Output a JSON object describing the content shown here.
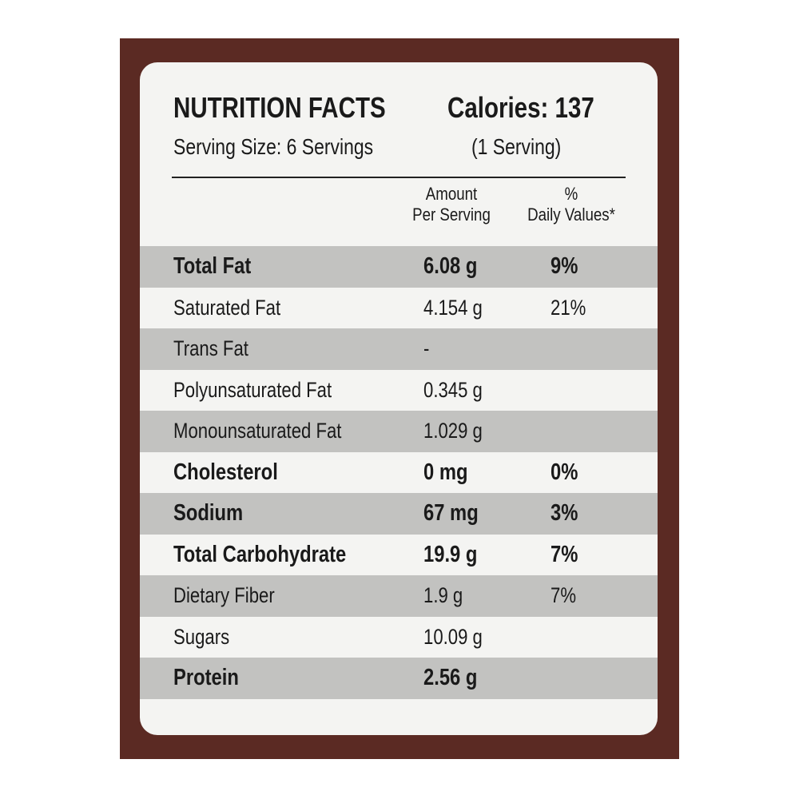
{
  "header": {
    "title": "NUTRITION FACTS",
    "serving_size": "Serving Size: 6 Servings",
    "calories": "Calories: 137",
    "calories_basis": "(1 Serving)"
  },
  "columns": {
    "amount": [
      "Amount",
      "Per Serving"
    ],
    "daily_value": [
      "%",
      "Daily Values*"
    ]
  },
  "table": {
    "rows": [
      {
        "name": "Total Fat",
        "amount": "6.08 g",
        "daily_value": "9%",
        "bold": true
      },
      {
        "name": "Saturated Fat",
        "amount": "4.154 g",
        "daily_value": "21%",
        "bold": false
      },
      {
        "name": "Trans Fat",
        "amount": "-",
        "daily_value": null,
        "bold": false
      },
      {
        "name": "Polyunsaturated Fat",
        "amount": "0.345 g",
        "daily_value": null,
        "bold": false
      },
      {
        "name": "Monounsaturated Fat",
        "amount": "1.029 g",
        "daily_value": null,
        "bold": false
      },
      {
        "name": "Cholesterol",
        "amount": "0 mg",
        "daily_value": "0%",
        "bold": true
      },
      {
        "name": "Sodium",
        "amount": "67 mg",
        "daily_value": "3%",
        "bold": true
      },
      {
        "name": "Total Carbohydrate",
        "amount": "19.9 g",
        "daily_value": "7%",
        "bold": true
      },
      {
        "name": "Dietary Fiber",
        "amount": "1.9 g",
        "daily_value": "7%",
        "bold": false
      },
      {
        "name": "Sugars",
        "amount": "10.09 g",
        "daily_value": null,
        "bold": false
      },
      {
        "name": "Protein",
        "amount": "2.56 g",
        "daily_value": null,
        "bold": true
      }
    ]
  }
}
